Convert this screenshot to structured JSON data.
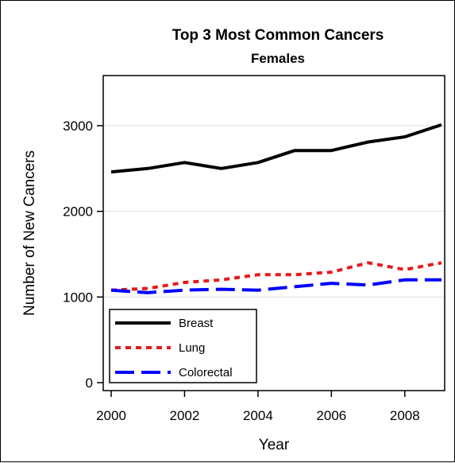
{
  "chart_data": {
    "type": "line",
    "title": "Top 3 Most Common Cancers",
    "subtitle": "Females",
    "xlabel": "Year",
    "ylabel": "Number of New Cancers",
    "xlim": [
      2000,
      2009
    ],
    "ylim": [
      0,
      3500
    ],
    "x_ticks": [
      "2000",
      "2002",
      "2004",
      "2006",
      "2008"
    ],
    "y_ticks": [
      "0",
      "1000",
      "2000",
      "3000"
    ],
    "grid": "horizontal",
    "legend_position": "bottom-left",
    "x": [
      2000,
      2001,
      2002,
      2003,
      2004,
      2005,
      2006,
      2007,
      2008,
      2009
    ],
    "series": [
      {
        "name": "Breast",
        "color": "#000000",
        "style": "solid",
        "values": [
          2460,
          2500,
          2570,
          2500,
          2570,
          2710,
          2710,
          2810,
          2870,
          3010
        ]
      },
      {
        "name": "Lung",
        "color": "#e41a1c",
        "style": "dotted",
        "values": [
          1080,
          1100,
          1170,
          1200,
          1260,
          1260,
          1290,
          1400,
          1320,
          1400
        ]
      },
      {
        "name": "Colorectal",
        "color": "#0000ff",
        "style": "dashed",
        "values": [
          1080,
          1050,
          1080,
          1090,
          1080,
          1120,
          1160,
          1140,
          1200,
          1200
        ]
      }
    ]
  }
}
